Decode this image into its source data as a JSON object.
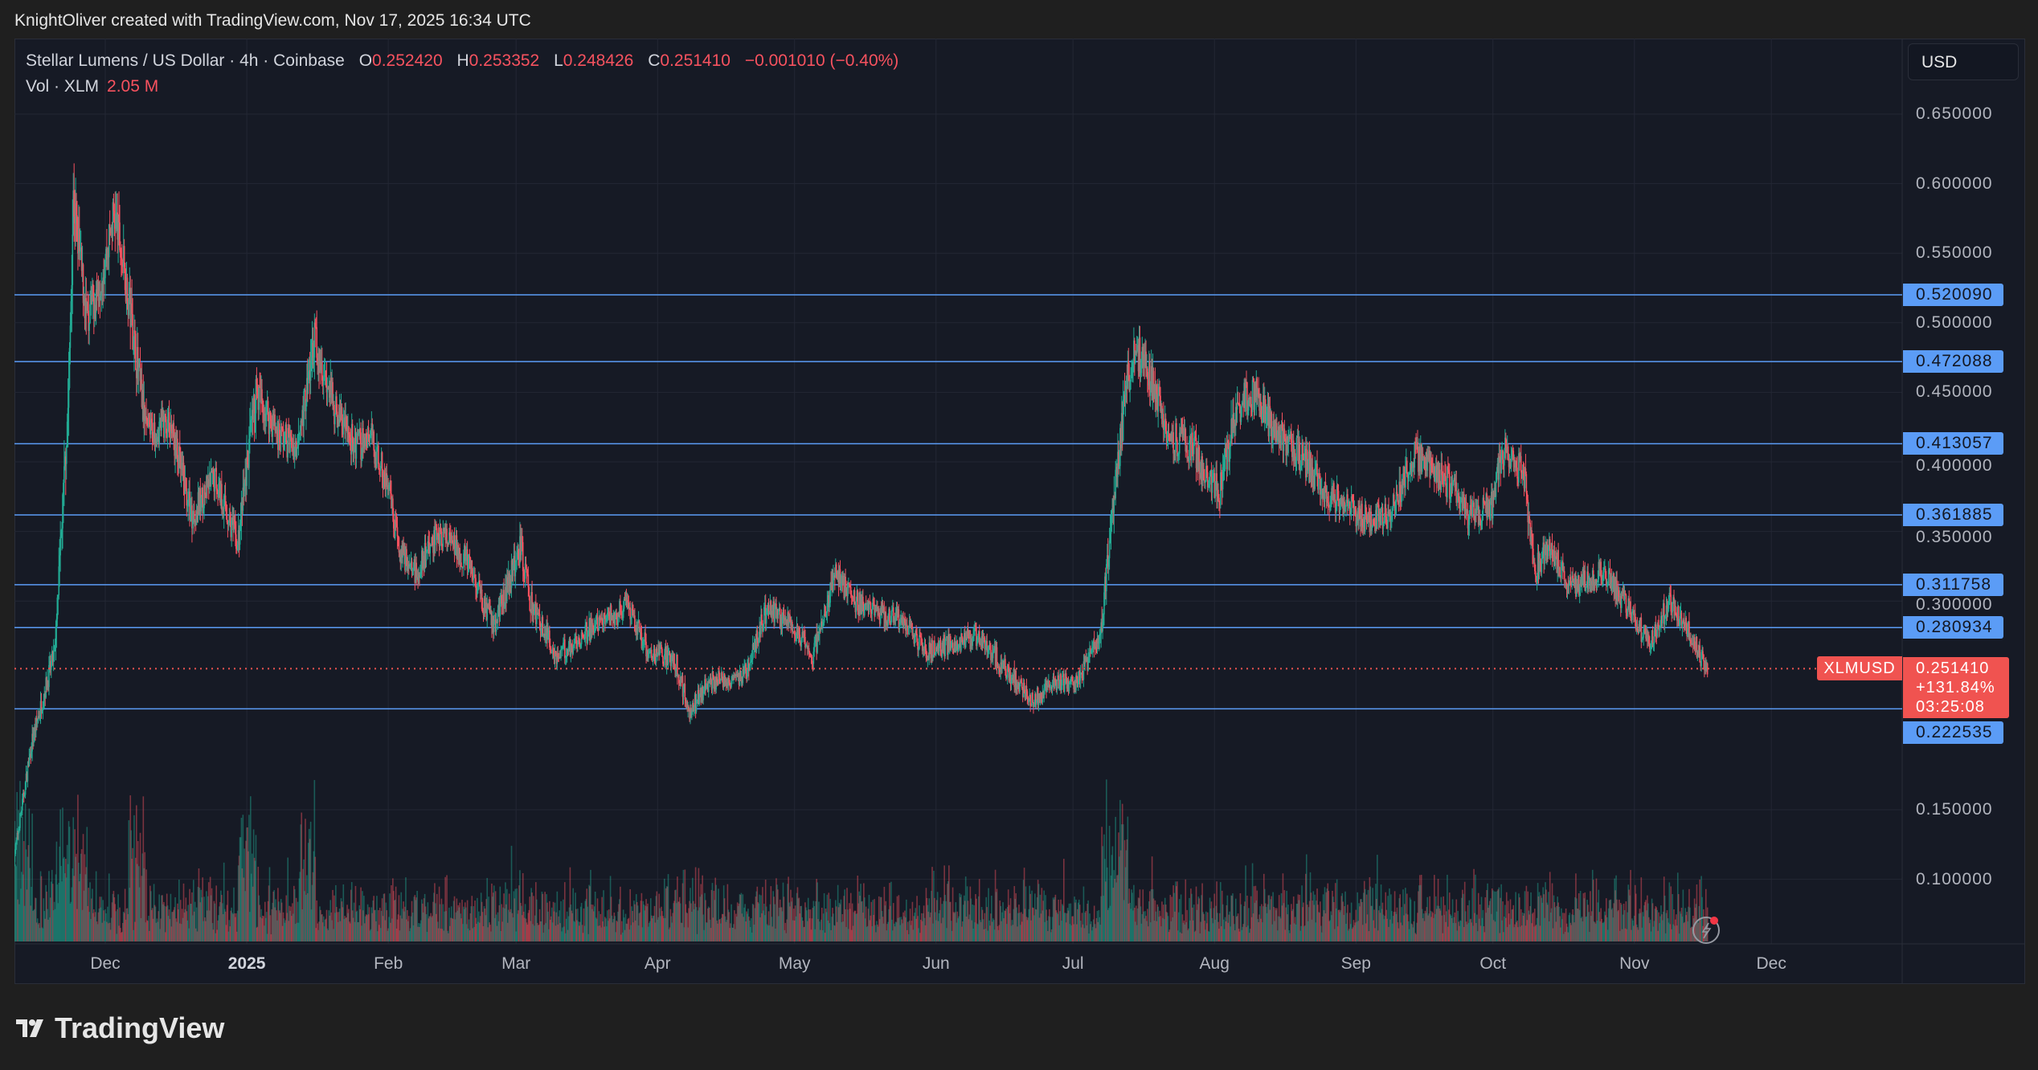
{
  "credit": "KnightOliver created with TradingView.com, Nov 17, 2025 16:34 UTC",
  "legend": {
    "symbol": "Stellar Lumens / US Dollar · 4h · Coinbase",
    "o_label": "O",
    "o": "0.252420",
    "h_label": "H",
    "h": "0.253352",
    "l_label": "L",
    "l": "0.248426",
    "c_label": "C",
    "c": "0.251410",
    "change": "−0.001010 (−0.40%)",
    "vol_label": "Vol · XLM",
    "vol": "2.05 M"
  },
  "currency": "USD",
  "logo_text": "TradingView",
  "colors": {
    "up": "#22ab94",
    "down": "#f7525f",
    "level": "#5b9cf6",
    "background": "#161a25",
    "last_price": "#f05350"
  },
  "chart_data": {
    "type": "candlestick",
    "interval": "4h",
    "ylim": [
      0.05,
      0.67
    ],
    "y_ticks": [
      "0.650000",
      "0.600000",
      "0.550000",
      "0.500000",
      "0.450000",
      "0.400000",
      "0.350000",
      "0.300000",
      "0.150000",
      "0.100000"
    ],
    "x_ticks": [
      {
        "label": "Dec",
        "date": "2024-12-01"
      },
      {
        "label": "2025",
        "date": "2025-01-01",
        "bold": true
      },
      {
        "label": "Feb",
        "date": "2025-02-01"
      },
      {
        "label": "Mar",
        "date": "2025-03-01"
      },
      {
        "label": "Apr",
        "date": "2025-04-01"
      },
      {
        "label": "May",
        "date": "2025-05-01"
      },
      {
        "label": "Jun",
        "date": "2025-06-01"
      },
      {
        "label": "Jul",
        "date": "2025-07-01"
      },
      {
        "label": "Aug",
        "date": "2025-08-01"
      },
      {
        "label": "Sep",
        "date": "2025-09-01"
      },
      {
        "label": "Oct",
        "date": "2025-10-01"
      },
      {
        "label": "Nov",
        "date": "2025-11-01"
      },
      {
        "label": "Dec",
        "date": "2025-12-01"
      }
    ],
    "horizontal_levels": [
      "0.520090",
      "0.472088",
      "0.413057",
      "0.361885",
      "0.311758",
      "0.280934",
      "0.222535"
    ],
    "last_price": {
      "symbol": "XLMUSD",
      "price": "0.251410",
      "change_pct": "+131.84%",
      "countdown": "03:25:08"
    },
    "approx_close_path": [
      [
        "2024-11-11",
        0.116
      ],
      [
        "2024-11-15",
        0.2
      ],
      [
        "2024-11-20",
        0.265
      ],
      [
        "2024-11-23",
        0.45
      ],
      [
        "2024-11-24",
        0.59
      ],
      [
        "2024-11-27",
        0.5
      ],
      [
        "2024-12-01",
        0.545
      ],
      [
        "2024-12-03",
        0.58
      ],
      [
        "2024-12-06",
        0.52
      ],
      [
        "2024-12-10",
        0.42
      ],
      [
        "2024-12-15",
        0.43
      ],
      [
        "2024-12-20",
        0.36
      ],
      [
        "2024-12-25",
        0.39
      ],
      [
        "2024-12-30",
        0.34
      ],
      [
        "2025-01-03",
        0.45
      ],
      [
        "2025-01-08",
        0.42
      ],
      [
        "2025-01-12",
        0.41
      ],
      [
        "2025-01-16",
        0.49
      ],
      [
        "2025-01-20",
        0.44
      ],
      [
        "2025-01-25",
        0.41
      ],
      [
        "2025-01-28",
        0.42
      ],
      [
        "2025-02-01",
        0.38
      ],
      [
        "2025-02-03",
        0.34
      ],
      [
        "2025-02-07",
        0.32
      ],
      [
        "2025-02-12",
        0.35
      ],
      [
        "2025-02-18",
        0.33
      ],
      [
        "2025-02-24",
        0.28
      ],
      [
        "2025-03-02",
        0.34
      ],
      [
        "2025-03-04",
        0.3
      ],
      [
        "2025-03-10",
        0.26
      ],
      [
        "2025-03-15",
        0.275
      ],
      [
        "2025-03-20",
        0.285
      ],
      [
        "2025-03-25",
        0.295
      ],
      [
        "2025-03-30",
        0.265
      ],
      [
        "2025-04-05",
        0.256
      ],
      [
        "2025-04-08",
        0.22
      ],
      [
        "2025-04-12",
        0.242
      ],
      [
        "2025-04-20",
        0.247
      ],
      [
        "2025-04-25",
        0.295
      ],
      [
        "2025-05-01",
        0.28
      ],
      [
        "2025-05-05",
        0.26
      ],
      [
        "2025-05-10",
        0.32
      ],
      [
        "2025-05-14",
        0.3
      ],
      [
        "2025-05-20",
        0.29
      ],
      [
        "2025-05-25",
        0.285
      ],
      [
        "2025-05-30",
        0.265
      ],
      [
        "2025-06-05",
        0.27
      ],
      [
        "2025-06-10",
        0.275
      ],
      [
        "2025-06-15",
        0.256
      ],
      [
        "2025-06-22",
        0.228
      ],
      [
        "2025-06-27",
        0.242
      ],
      [
        "2025-07-02",
        0.242
      ],
      [
        "2025-07-07",
        0.275
      ],
      [
        "2025-07-10",
        0.377
      ],
      [
        "2025-07-13",
        0.46
      ],
      [
        "2025-07-15",
        0.48
      ],
      [
        "2025-07-18",
        0.46
      ],
      [
        "2025-07-22",
        0.42
      ],
      [
        "2025-07-27",
        0.41
      ],
      [
        "2025-08-02",
        0.377
      ],
      [
        "2025-08-06",
        0.44
      ],
      [
        "2025-08-10",
        0.45
      ],
      [
        "2025-08-14",
        0.42
      ],
      [
        "2025-08-20",
        0.405
      ],
      [
        "2025-08-26",
        0.377
      ],
      [
        "2025-09-02",
        0.36
      ],
      [
        "2025-09-08",
        0.36
      ],
      [
        "2025-09-14",
        0.405
      ],
      [
        "2025-09-20",
        0.39
      ],
      [
        "2025-09-26",
        0.36
      ],
      [
        "2025-10-01",
        0.37
      ],
      [
        "2025-10-03",
        0.41
      ],
      [
        "2025-10-08",
        0.39
      ],
      [
        "2025-10-10",
        0.32
      ],
      [
        "2025-10-13",
        0.34
      ],
      [
        "2025-10-18",
        0.31
      ],
      [
        "2025-10-25",
        0.32
      ],
      [
        "2025-10-30",
        0.3
      ],
      [
        "2025-11-04",
        0.27
      ],
      [
        "2025-11-09",
        0.3
      ],
      [
        "2025-11-14",
        0.27
      ],
      [
        "2025-11-17",
        0.2514
      ]
    ]
  }
}
